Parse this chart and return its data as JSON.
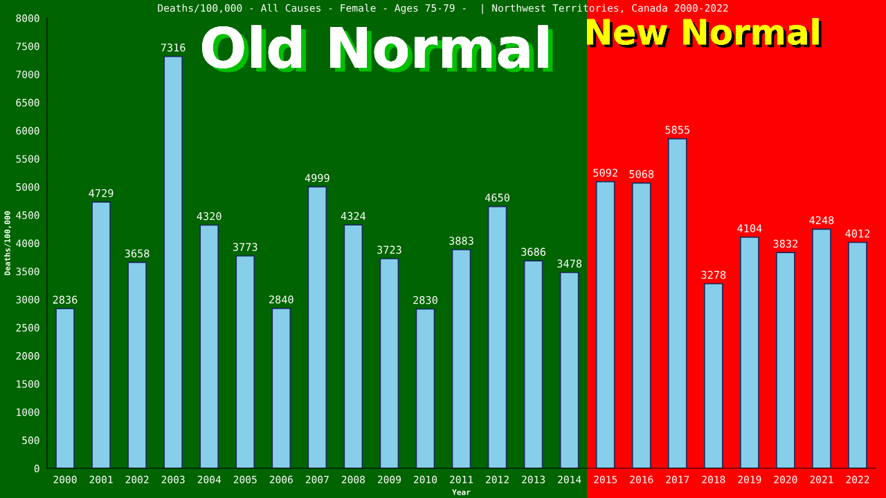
{
  "chart_data": {
    "type": "bar",
    "title": "Deaths/100,000 - All Causes - Female - Ages 75-79 -  | Northwest Territories, Canada 2000-2022",
    "xlabel": "Year",
    "ylabel": "Deaths/100,000",
    "categories": [
      "2000",
      "2001",
      "2002",
      "2003",
      "2004",
      "2005",
      "2006",
      "2007",
      "2008",
      "2009",
      "2010",
      "2011",
      "2012",
      "2013",
      "2014",
      "2015",
      "2016",
      "2017",
      "2018",
      "2019",
      "2020",
      "2021",
      "2022"
    ],
    "values": [
      2836,
      4729,
      3658,
      7316,
      4320,
      3773,
      2840,
      4999,
      4324,
      3723,
      2830,
      3883,
      4650,
      3686,
      3478,
      5092,
      5068,
      5855,
      3278,
      4104,
      3832,
      4248,
      4012
    ],
    "color": "#87ceeb",
    "data_labels": true,
    "ylim": [
      0,
      8000
    ],
    "yticks": [
      0,
      500,
      1000,
      1500,
      2000,
      2500,
      3000,
      3500,
      4000,
      4500,
      5000,
      5500,
      6000,
      6500,
      7000,
      7500,
      8000
    ],
    "grid": false,
    "bands": [
      {
        "axis": "x",
        "from": "2000",
        "to": "2014",
        "label": "Old Normal",
        "color": "#006400"
      },
      {
        "axis": "x",
        "from": "2015",
        "to": "2022",
        "label": "New Normal",
        "color": "#ff0000"
      }
    ]
  }
}
